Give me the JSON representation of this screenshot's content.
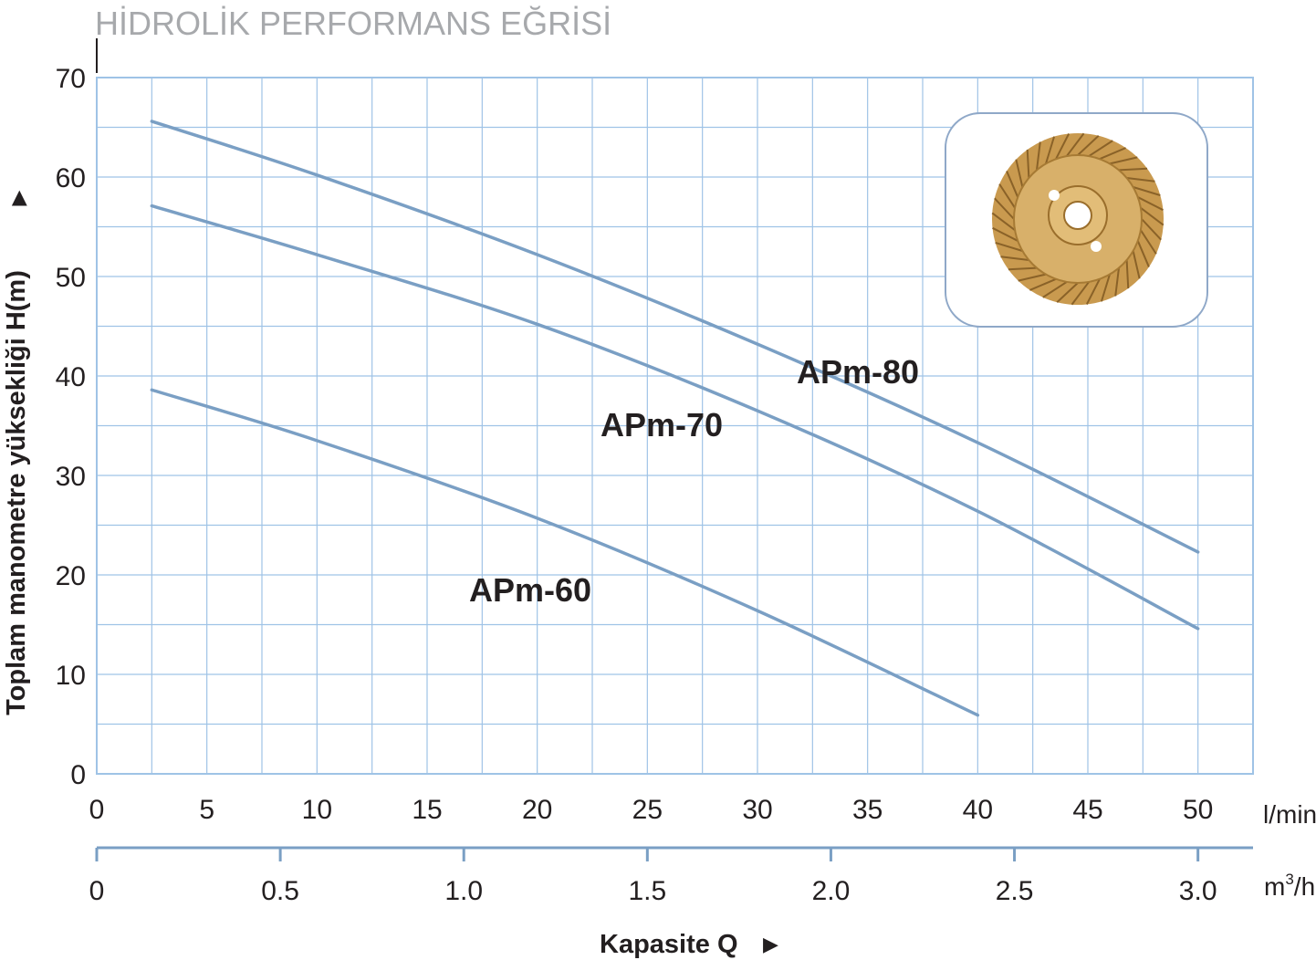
{
  "page_title": "HİDROLİK PERFORMANS EĞRİSİ",
  "chart_data": {
    "type": "line",
    "title": "HİDROLİK PERFORMANS EĞRİSİ",
    "ylabel": "Toplam manometre yüksekliği  H(m)",
    "xlabel": "Kapasite Q",
    "ylim": [
      0,
      70
    ],
    "xlim": [
      0,
      52.5
    ],
    "yticks": [
      "0",
      "10",
      "20",
      "30",
      "40",
      "50",
      "60",
      "70"
    ],
    "xticks": [
      "0",
      "5",
      "10",
      "15",
      "20",
      "25",
      "30",
      "35",
      "40",
      "45",
      "50"
    ],
    "x_unit": "l/min",
    "x2_ticks": [
      "0",
      "0.5",
      "1.0",
      "1.5",
      "2.0",
      "2.5",
      "3.0"
    ],
    "x2_unit_base": "m",
    "x2_unit_sup": "3",
    "x2_unit_tail": "/h",
    "grid": true,
    "series": [
      {
        "name": "APm-80",
        "x": [
          2.5,
          10,
          20,
          30,
          40,
          50
        ],
        "y": [
          65.6,
          60.2,
          52.2,
          43.2,
          33.3,
          22.3
        ]
      },
      {
        "name": "APm-70",
        "x": [
          2.5,
          10,
          20,
          30,
          40,
          50
        ],
        "y": [
          57.1,
          52.2,
          45.2,
          36.5,
          26.4,
          14.6
        ]
      },
      {
        "name": "APm-60",
        "x": [
          2.5,
          10,
          20,
          30,
          40
        ],
        "y": [
          38.6,
          33.5,
          25.7,
          16.4,
          5.9
        ]
      }
    ],
    "line_color": "#7a9fc4",
    "grid_color": "#9fc3e6"
  }
}
